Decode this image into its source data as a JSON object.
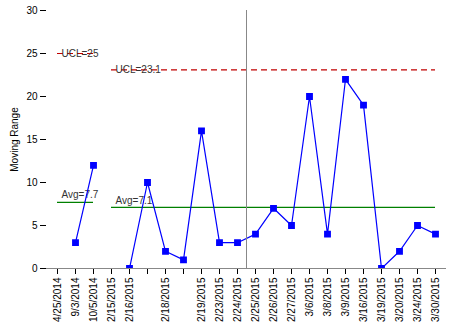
{
  "chart_data": {
    "type": "line",
    "ylabel": "Moving Range",
    "categories": [
      "4/25/2014",
      "9/3/2014",
      "10/5/2014",
      "2/15/2015",
      "2/16/2015",
      null,
      "2/18/2015",
      null,
      "2/19/2015",
      "2/23/2015",
      "2/24/2015",
      "2/25/2015",
      "2/26/2015",
      "2/27/2015",
      "3/6/2015",
      "3/8/2015",
      "3/9/2015",
      "3/16/2015",
      "3/19/2015",
      "3/20/2015",
      "3/24/2015",
      "3/30/2015"
    ],
    "values": [
      null,
      3,
      12,
      null,
      0,
      10,
      2,
      1,
      16,
      3,
      3,
      4,
      7,
      5,
      20,
      4,
      22,
      19,
      0,
      2,
      5,
      4
    ],
    "color": "#0000ff",
    "marker": "square",
    "ylim": [
      0,
      30
    ],
    "yticks": [
      0,
      5,
      10,
      15,
      20,
      25,
      30
    ],
    "grid": false,
    "phases": [
      {
        "from": "4/25/2014",
        "to": "10/5/2014",
        "ucl": 25,
        "ucl_label": "UCL=25",
        "avg": 7.7,
        "avg_label": "Avg=7.7"
      },
      {
        "from": "2/15/2015",
        "to": "3/30/2015",
        "ucl": 23.1,
        "ucl_label": "UCL=23.1",
        "avg": 7.1,
        "avg_label": "Avg=7.1"
      }
    ],
    "ucl_color": "#c00000",
    "avg_color": "#008000"
  }
}
